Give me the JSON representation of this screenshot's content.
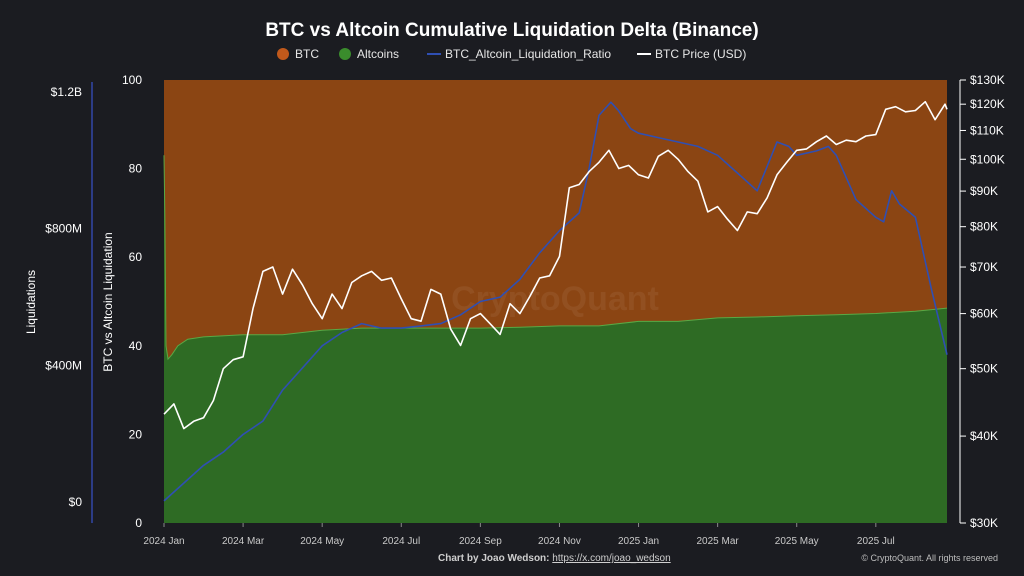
{
  "chart_data": {
    "type": "area",
    "title": "BTC vs Altcoin Cumulative Liquidation Delta (Binance)",
    "colors": {
      "btc": "#8b4513",
      "btc_legend": "#c1591b",
      "altcoins": "#2e6b24",
      "altcoins_legend": "#3a8c2c",
      "altcoins_edge": "#5aa845",
      "ratio": "#2f4fb3",
      "price": "#ffffff",
      "background": "#1b1c21",
      "far_left_axis": "#3346a8"
    },
    "legend": [
      {
        "name": "BTC",
        "marker": "circle",
        "color_key": "btc_legend"
      },
      {
        "name": "Altcoins",
        "marker": "circle",
        "color_key": "altcoins_legend"
      },
      {
        "name": "BTC_Altcoin_Liquidation_Ratio",
        "marker": "line",
        "color_key": "ratio"
      },
      {
        "name": "BTC Price (USD)",
        "marker": "line",
        "color_key": "price"
      }
    ],
    "legend_position": "top-center",
    "x_ticks": [
      "2024 Jan",
      "2024 Mar",
      "2024 May",
      "2024 Jul",
      "2024 Sep",
      "2024 Nov",
      "2025 Jan",
      "2025 Mar",
      "2025 May",
      "2025 Jul"
    ],
    "x_range": [
      0,
      19.8
    ],
    "y_left": {
      "label": "BTC vs Altcoin Liquidation",
      "ticks": [
        "0",
        "20",
        "40",
        "60",
        "80",
        "100"
      ],
      "range": [
        0,
        100
      ]
    },
    "y_far_left": {
      "label": "Liquidations",
      "ticks": [
        "$0",
        "$400M",
        "$800M",
        "$1.2B"
      ]
    },
    "y_right": {
      "label": "",
      "scale": "log",
      "ticks": [
        "$30K",
        "$40K",
        "$50K",
        "$60K",
        "$70K",
        "$80K",
        "$90K",
        "$100K",
        "$110K",
        "$120K",
        "$130K"
      ],
      "range": [
        30000,
        130000
      ]
    },
    "series": [
      {
        "name": "Altcoins",
        "type": "area",
        "x": [
          0,
          0.02,
          0.05,
          0.1,
          0.2,
          0.35,
          0.6,
          1,
          2,
          3,
          4,
          5,
          6,
          7,
          8,
          9,
          10,
          11,
          12,
          13,
          14,
          15,
          16,
          17,
          18,
          19,
          19.8
        ],
        "values": [
          83,
          70,
          40,
          37,
          38,
          40,
          41.5,
          42,
          42.5,
          42.5,
          43.5,
          44,
          44,
          44,
          44,
          44.2,
          44.5,
          44.5,
          45.5,
          45.5,
          46.3,
          46.5,
          46.8,
          47,
          47.3,
          47.8,
          48.5
        ]
      },
      {
        "name": "BTC",
        "type": "area",
        "note_values_are_top_of_stack": true,
        "values": [
          100
        ]
      },
      {
        "name": "BTC_Altcoin_Liquidation_Ratio",
        "type": "line",
        "x": [
          0,
          0.5,
          1,
          1.5,
          2,
          2.5,
          3,
          3.5,
          4,
          4.5,
          5,
          5.5,
          6,
          6.5,
          7,
          7.5,
          8,
          8.5,
          9,
          9.5,
          10,
          10.5,
          10.75,
          11,
          11.3,
          11.5,
          11.8,
          12,
          12.5,
          13,
          13.5,
          14,
          14.5,
          15,
          15.5,
          15.8,
          16,
          16.5,
          16.8,
          17,
          17.5,
          18,
          18.2,
          18.4,
          18.6,
          19,
          19.4,
          19.8
        ],
        "values": [
          5,
          9,
          13,
          16,
          20,
          23,
          30,
          35,
          40,
          43,
          45,
          44,
          44,
          44.5,
          45,
          47,
          50,
          51,
          55,
          61,
          66,
          70,
          80,
          92,
          95,
          93,
          89,
          88,
          87,
          86,
          85,
          83,
          79,
          75,
          86,
          85,
          83,
          84,
          85,
          83,
          73,
          69,
          68,
          75,
          72,
          69,
          53,
          38
        ]
      },
      {
        "name": "BTC Price (USD)",
        "type": "line",
        "axis": "y_right",
        "x": [
          0,
          0.25,
          0.5,
          0.75,
          1,
          1.25,
          1.5,
          1.75,
          2,
          2.25,
          2.5,
          2.75,
          3,
          3.25,
          3.5,
          3.75,
          4,
          4.25,
          4.5,
          4.75,
          5,
          5.25,
          5.5,
          5.75,
          6,
          6.25,
          6.5,
          6.75,
          7,
          7.25,
          7.5,
          7.75,
          8,
          8.25,
          8.5,
          8.75,
          9,
          9.25,
          9.5,
          9.75,
          10,
          10.25,
          10.5,
          10.75,
          11,
          11.25,
          11.5,
          11.75,
          12,
          12.25,
          12.5,
          12.75,
          13,
          13.25,
          13.5,
          13.75,
          14,
          14.25,
          14.5,
          14.75,
          15,
          15.25,
          15.5,
          15.75,
          16,
          16.25,
          16.5,
          16.75,
          17,
          17.25,
          17.5,
          17.75,
          18,
          18.25,
          18.5,
          18.75,
          19,
          19.25,
          19.5,
          19.75,
          19.8
        ],
        "values": [
          43000,
          44500,
          41000,
          42000,
          42500,
          45000,
          50000,
          51500,
          52000,
          61000,
          69000,
          70000,
          64000,
          69500,
          66000,
          62000,
          59000,
          64000,
          61000,
          66500,
          68000,
          69000,
          67000,
          67500,
          63000,
          59000,
          58500,
          65000,
          64000,
          57000,
          54000,
          59000,
          60000,
          58000,
          56000,
          62000,
          60000,
          63500,
          67500,
          68000,
          72500,
          91000,
          92000,
          96000,
          99000,
          103000,
          97000,
          98000,
          95000,
          94000,
          101000,
          103000,
          100000,
          96000,
          93000,
          84000,
          85500,
          82000,
          79000,
          84000,
          83500,
          88000,
          95000,
          99000,
          103000,
          103500,
          106000,
          108000,
          105000,
          106500,
          106000,
          108000,
          108500,
          118000,
          119000,
          117000,
          117500,
          121000,
          114000,
          120000,
          118000
        ]
      }
    ],
    "watermark": "CryptoQuant",
    "footer": {
      "prefix": "Chart by Joao Wedson: ",
      "link": "https://x.com/joao_wedson",
      "credit": "© CryptoQuant. All rights reserved"
    }
  }
}
